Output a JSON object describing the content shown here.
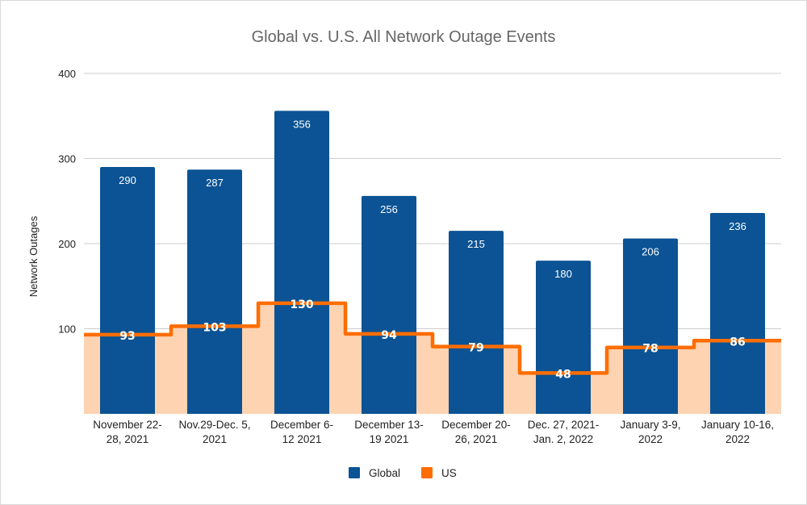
{
  "chart_data": {
    "type": "bar",
    "title": "Global vs. U.S. All Network Outage Events",
    "xlabel": "",
    "ylabel": "Network Outages",
    "ylim": [
      0,
      400
    ],
    "yticks": [
      100,
      200,
      300,
      400
    ],
    "grid": true,
    "legend_position": "bottom",
    "categories": [
      [
        "November 22-",
        "28, 2021"
      ],
      [
        "Nov.29-Dec. 5,",
        "2021"
      ],
      [
        "December 6-",
        "12 2021"
      ],
      [
        "December 13-",
        "19 2021"
      ],
      [
        "December 20-",
        "26, 2021"
      ],
      [
        "Dec. 27, 2021-",
        "Jan. 2, 2022"
      ],
      [
        "January 3-9,",
        "2022"
      ],
      [
        "January 10-16,",
        "2022"
      ]
    ],
    "series": [
      {
        "name": "Global",
        "type": "bar",
        "color": "#0b5394",
        "values": [
          290,
          287,
          356,
          256,
          215,
          180,
          206,
          236
        ]
      },
      {
        "name": "US",
        "type": "stepped-area",
        "color": "#ff6d01",
        "fill_color": "#fdd3b2",
        "values": [
          93,
          103,
          130,
          94,
          79,
          48,
          78,
          86
        ]
      }
    ]
  }
}
